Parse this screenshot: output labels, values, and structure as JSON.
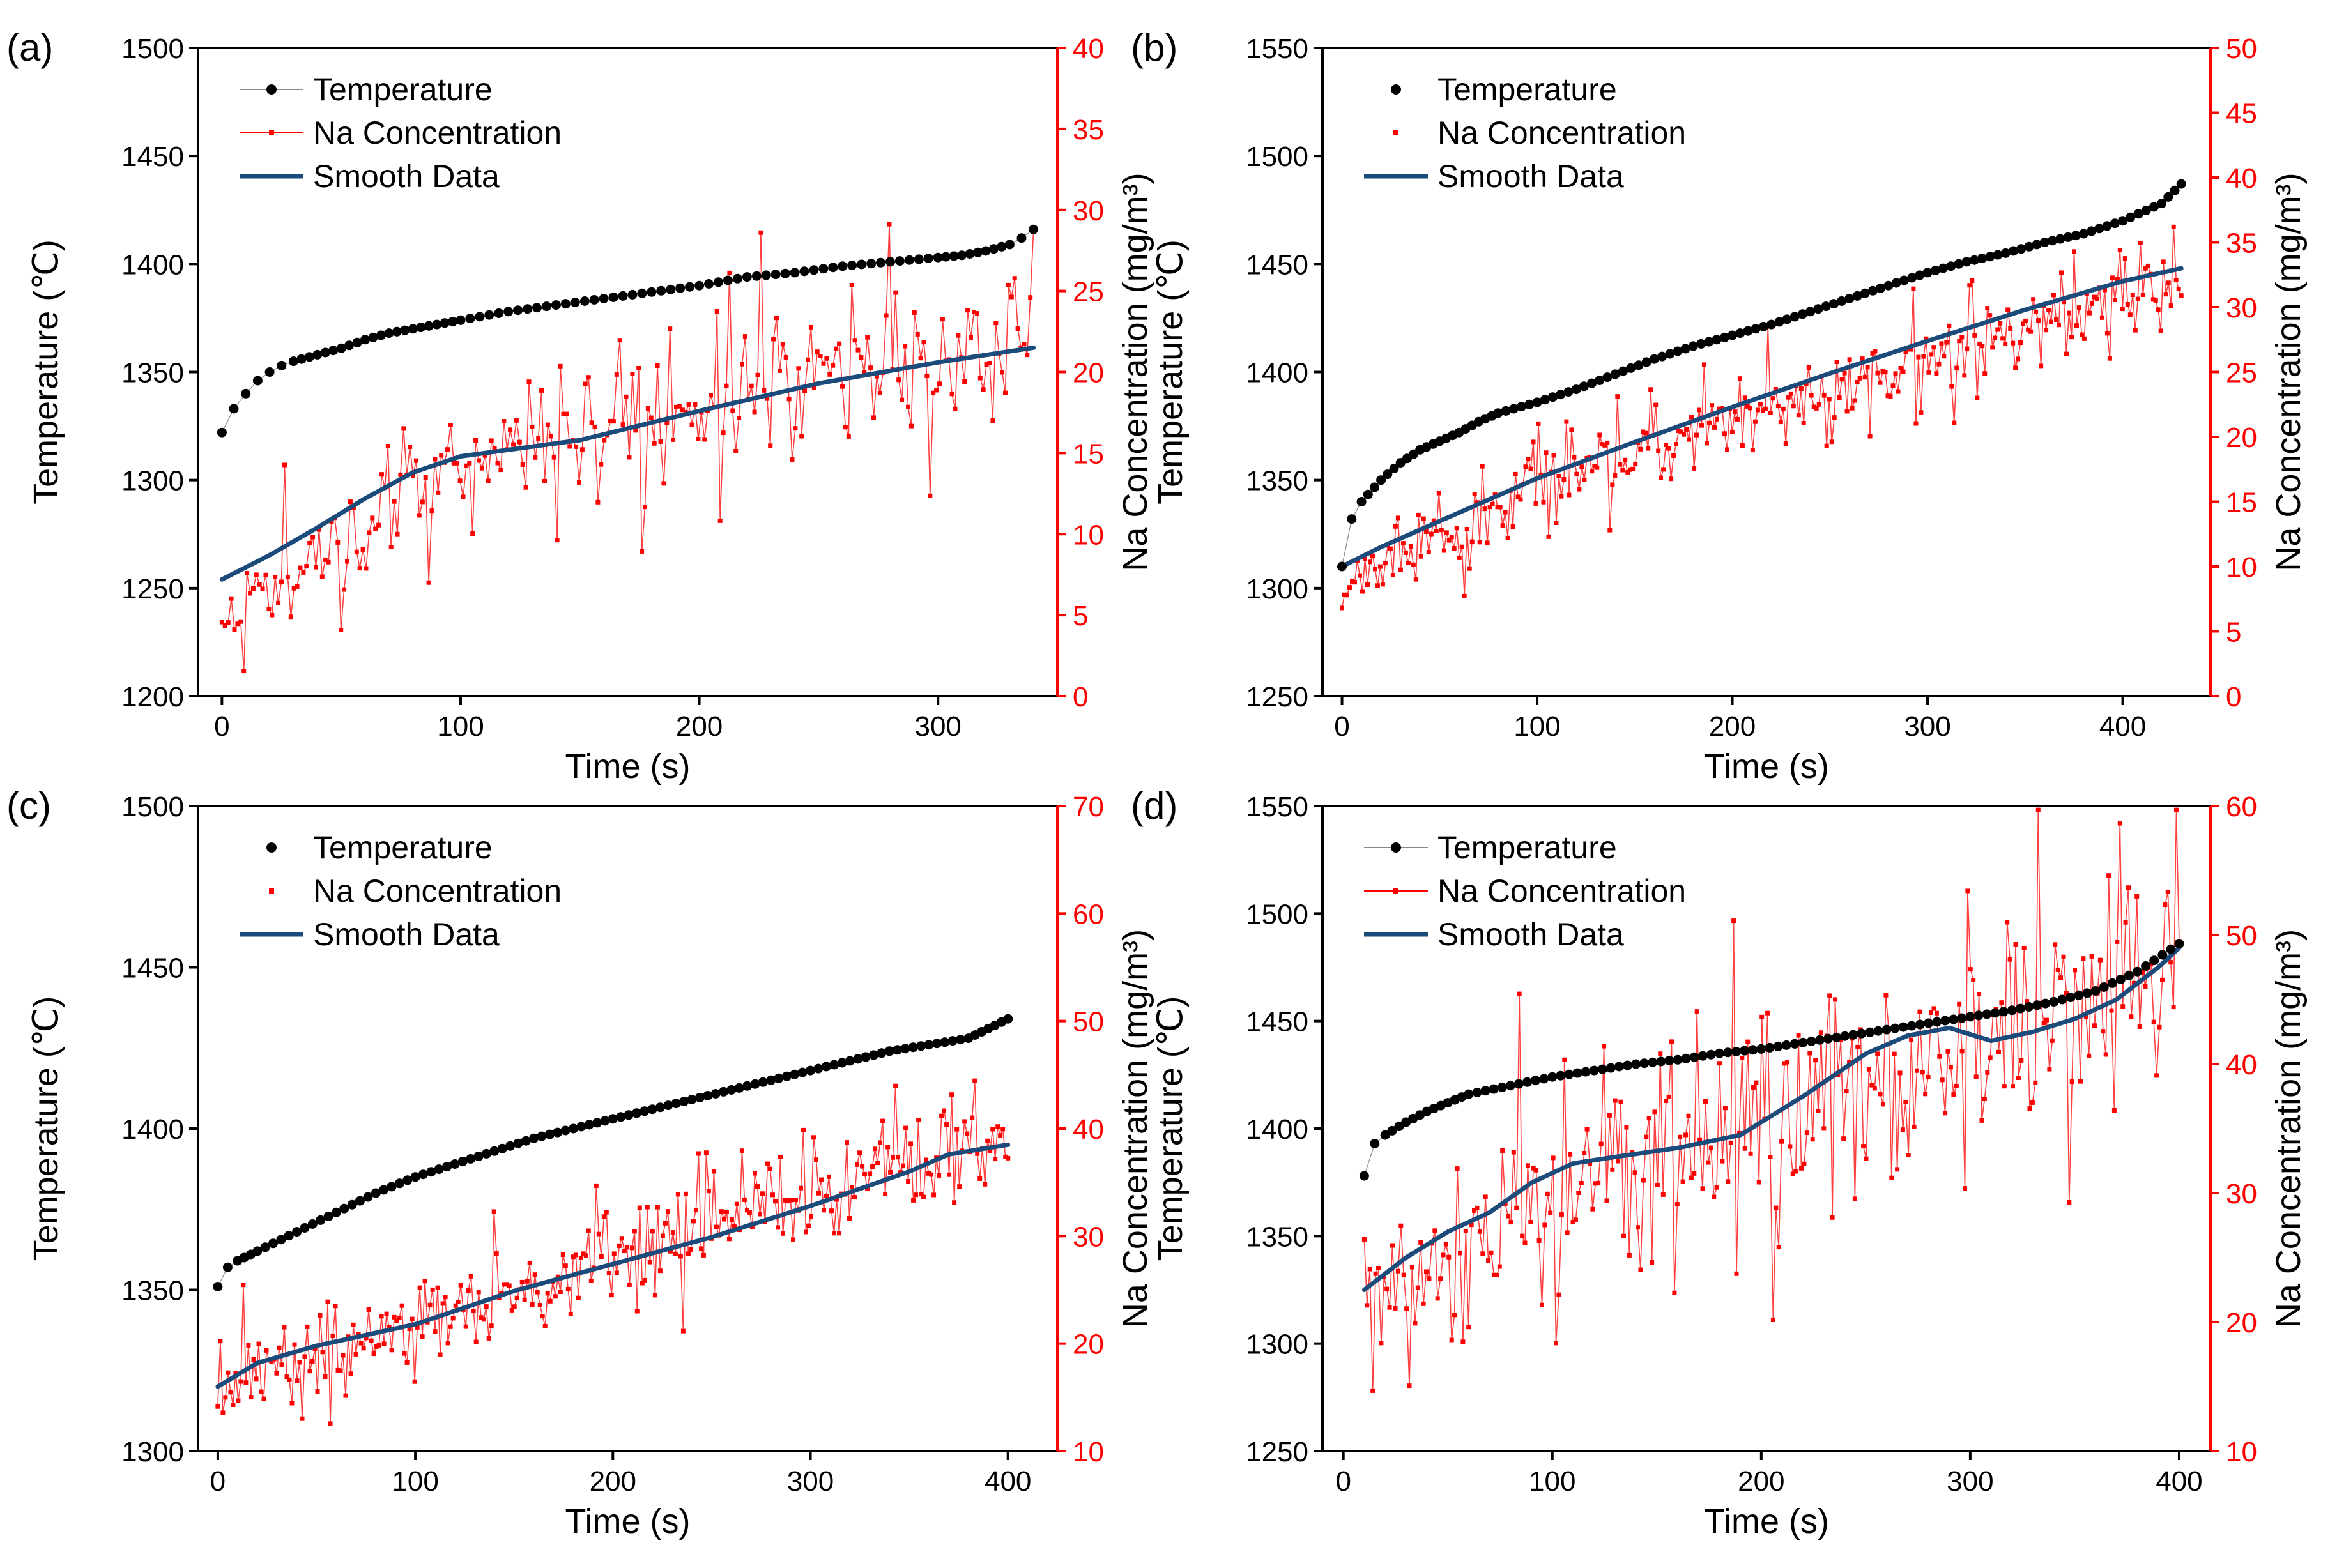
{
  "colors": {
    "temperature": "#000000",
    "na": "#ff0000",
    "smooth": "#1b4b7a",
    "right_axis": "#ff0000",
    "axis": "#000000"
  },
  "chart_data": [
    {
      "type": "line",
      "panel_label": "(a)",
      "xlabel": "Time (s)",
      "ylabel_left": "Temperature (℃)",
      "ylabel_right": "Na Concentration (mg/m³)",
      "xlim": [
        -10,
        350
      ],
      "ylim_left": [
        1200,
        1500
      ],
      "ylim_right": [
        0,
        40
      ],
      "xticks": [
        0,
        100,
        200,
        300
      ],
      "yticks_left": [
        1200,
        1250,
        1300,
        1350,
        1400,
        1450,
        1500
      ],
      "yticks_right": [
        0,
        5,
        10,
        15,
        20,
        25,
        30,
        35,
        40
      ],
      "legend_position": "top-left",
      "legend_style": "lines",
      "legend": [
        "Temperature",
        "Na Concentration",
        "Smooth Data"
      ],
      "temperature": {
        "x": [
          0,
          5,
          10,
          15,
          20,
          25,
          30,
          40,
          50,
          60,
          70,
          80,
          90,
          100,
          120,
          140,
          160,
          180,
          200,
          220,
          240,
          260,
          280,
          300,
          310,
          320,
          330,
          335,
          340
        ],
        "y": [
          1322,
          1333,
          1340,
          1346,
          1350,
          1353,
          1355,
          1358,
          1361,
          1365,
          1368,
          1370,
          1372,
          1374,
          1378,
          1381,
          1384,
          1387,
          1390,
          1394,
          1396,
          1399,
          1401,
          1403,
          1404,
          1406,
          1409,
          1412,
          1416
        ]
      },
      "na": {
        "start": 5,
        "end": 23,
        "noise": 2.6,
        "spike": 8,
        "n": 260,
        "x0": 0,
        "x1": 340,
        "seed": 11,
        "mid_x": 100,
        "mid_y": 14.5
      },
      "smooth": {
        "x": [
          0,
          20,
          40,
          60,
          80,
          100,
          120,
          150,
          200,
          250,
          300,
          340
        ],
        "y": [
          7.2,
          8.7,
          10.4,
          12.2,
          13.8,
          14.8,
          15.2,
          15.8,
          17.6,
          19.3,
          20.6,
          21.5
        ]
      }
    },
    {
      "type": "line",
      "panel_label": "(b)",
      "xlabel": "Time (s)",
      "ylabel_left": "Temperature (℃)",
      "ylabel_right": "Na Concentration (mg/m³)",
      "xlim": [
        -10,
        445
      ],
      "ylim_left": [
        1250,
        1550
      ],
      "ylim_right": [
        0,
        50
      ],
      "xticks": [
        0,
        100,
        200,
        300,
        400
      ],
      "yticks_left": [
        1250,
        1300,
        1350,
        1400,
        1450,
        1500,
        1550
      ],
      "yticks_right": [
        0,
        5,
        10,
        15,
        20,
        25,
        30,
        35,
        40,
        45,
        50
      ],
      "legend_position": "top-left",
      "legend_style": "dots",
      "legend": [
        "Temperature",
        "Na Concentration",
        "Smooth Data"
      ],
      "temperature": {
        "x": [
          0,
          5,
          10,
          20,
          30,
          40,
          50,
          60,
          70,
          80,
          100,
          120,
          140,
          160,
          180,
          200,
          220,
          240,
          260,
          280,
          300,
          320,
          340,
          360,
          380,
          400,
          420,
          430
        ],
        "y": [
          1310,
          1332,
          1340,
          1350,
          1358,
          1364,
          1368,
          1372,
          1377,
          1381,
          1386,
          1392,
          1399,
          1406,
          1412,
          1417,
          1422,
          1428,
          1434,
          1440,
          1446,
          1451,
          1455,
          1460,
          1464,
          1470,
          1478,
          1487
        ]
      },
      "na": {
        "start": 8,
        "end": 32,
        "noise": 1.8,
        "spike": 5,
        "n": 330,
        "x0": 0,
        "x1": 430,
        "seed": 23,
        "mid_x": 100,
        "mid_y": 16.5
      },
      "smooth": {
        "x": [
          0,
          20,
          50,
          100,
          150,
          200,
          250,
          300,
          350,
          400,
          430
        ],
        "y": [
          10,
          11.5,
          13.5,
          16.8,
          19.6,
          22.3,
          24.9,
          27.4,
          29.8,
          32,
          33
        ]
      }
    },
    {
      "type": "line",
      "panel_label": "(c)",
      "xlabel": "Time (s)",
      "ylabel_left": "Temperature (℃)",
      "ylabel_right": "Na Concentration (mg/m³)",
      "xlim": [
        -10,
        425
      ],
      "ylim_left": [
        1300,
        1500
      ],
      "ylim_right": [
        10,
        70
      ],
      "xticks": [
        0,
        100,
        200,
        300,
        400
      ],
      "yticks_left": [
        1300,
        1350,
        1400,
        1450,
        1500
      ],
      "yticks_right": [
        10,
        20,
        30,
        40,
        50,
        60,
        70
      ],
      "legend_position": "top-left",
      "legend_style": "dots",
      "legend": [
        "Temperature",
        "Na Concentration",
        "Smooth Data"
      ],
      "temperature": {
        "x": [
          0,
          5,
          10,
          20,
          40,
          60,
          80,
          100,
          120,
          140,
          160,
          180,
          200,
          220,
          240,
          260,
          280,
          300,
          320,
          340,
          360,
          380,
          390,
          400
        ],
        "y": [
          1351,
          1357,
          1359,
          1362,
          1368,
          1374,
          1380,
          1385,
          1389,
          1393,
          1397,
          1400,
          1403,
          1406,
          1409,
          1412,
          1415,
          1418,
          1421,
          1424,
          1426,
          1428,
          1431,
          1434
        ]
      },
      "na": {
        "start": 16,
        "end": 40,
        "noise": 2.8,
        "spike": 10,
        "n": 310,
        "x0": 0,
        "x1": 400,
        "seed": 37,
        "mid_x": 100,
        "mid_y": 21.5
      },
      "smooth": {
        "x": [
          0,
          20,
          50,
          100,
          150,
          200,
          250,
          300,
          350,
          370,
          400
        ],
        "y": [
          16,
          18.2,
          19.8,
          21.8,
          24.9,
          27.4,
          29.9,
          32.8,
          36,
          37.6,
          38.5
        ]
      }
    },
    {
      "type": "line",
      "panel_label": "(d)",
      "xlabel": "Time (s)",
      "ylabel_left": "Temperature (℃)",
      "ylabel_right": "Na Concentration (mg/m³)",
      "xlim": [
        -10,
        415
      ],
      "ylim_left": [
        1250,
        1550
      ],
      "ylim_right": [
        10,
        60
      ],
      "xticks": [
        0,
        100,
        200,
        300,
        400
      ],
      "yticks_left": [
        1250,
        1300,
        1350,
        1400,
        1450,
        1500,
        1550
      ],
      "yticks_right": [
        10,
        20,
        30,
        40,
        50,
        60
      ],
      "legend_position": "top-left",
      "legend_style": "lines",
      "legend": [
        "Temperature",
        "Na Concentration",
        "Smooth Data"
      ],
      "temperature": {
        "x": [
          10,
          15,
          20,
          30,
          40,
          50,
          60,
          80,
          100,
          120,
          140,
          160,
          180,
          200,
          220,
          240,
          260,
          280,
          300,
          320,
          340,
          360,
          380,
          400
        ],
        "y": [
          1378,
          1393,
          1397,
          1403,
          1408,
          1412,
          1416,
          1420,
          1424,
          1427,
          1430,
          1432,
          1435,
          1437,
          1440,
          1443,
          1446,
          1449,
          1452,
          1455,
          1459,
          1464,
          1473,
          1486
        ]
      },
      "na": {
        "start": 22,
        "end": 48,
        "noise": 5.2,
        "spike": 14,
        "n": 290,
        "x0": 10,
        "x1": 400,
        "seed": 53,
        "mid_x": 160,
        "mid_y": 33.5
      },
      "smooth": {
        "x": [
          10,
          30,
          50,
          70,
          90,
          110,
          130,
          160,
          190,
          220,
          250,
          270,
          290,
          310,
          330,
          350,
          370,
          390,
          400
        ],
        "y": [
          22.5,
          25,
          27,
          28.5,
          30.8,
          32.3,
          32.8,
          33.5,
          34.5,
          37.5,
          40.8,
          42.2,
          42.8,
          41.8,
          42.5,
          43.5,
          45,
          47.5,
          49
        ]
      }
    }
  ]
}
